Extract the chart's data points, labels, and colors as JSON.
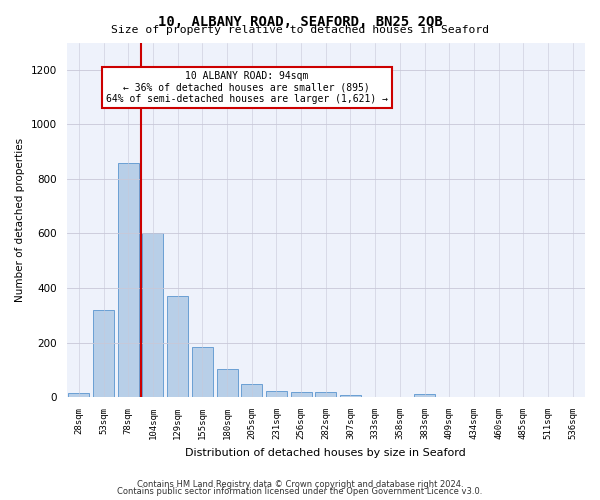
{
  "title": "10, ALBANY ROAD, SEAFORD, BN25 2QB",
  "subtitle": "Size of property relative to detached houses in Seaford",
  "xlabel": "Distribution of detached houses by size in Seaford",
  "ylabel": "Number of detached properties",
  "footer_line1": "Contains HM Land Registry data © Crown copyright and database right 2024.",
  "footer_line2": "Contains public sector information licensed under the Open Government Licence v3.0.",
  "annotation_line1": "10 ALBANY ROAD: 94sqm",
  "annotation_line2": "← 36% of detached houses are smaller (895)",
  "annotation_line3": "64% of semi-detached houses are larger (1,621) →",
  "bar_color": "#b8cfe8",
  "bar_edge_color": "#6a9fd4",
  "ref_line_color": "#cc0000",
  "categories": [
    "28sqm",
    "53sqm",
    "78sqm",
    "104sqm",
    "129sqm",
    "155sqm",
    "180sqm",
    "205sqm",
    "231sqm",
    "256sqm",
    "282sqm",
    "307sqm",
    "333sqm",
    "358sqm",
    "383sqm",
    "409sqm",
    "434sqm",
    "460sqm",
    "485sqm",
    "511sqm",
    "536sqm"
  ],
  "values": [
    15,
    320,
    860,
    600,
    370,
    185,
    105,
    48,
    22,
    18,
    18,
    8,
    0,
    0,
    12,
    0,
    0,
    0,
    0,
    0,
    0
  ],
  "ylim": [
    0,
    1300
  ],
  "yticks": [
    0,
    200,
    400,
    600,
    800,
    1000,
    1200
  ],
  "bg_color": "#eef2fb",
  "grid_color": "#c8c8d8",
  "annotation_box_color": "#cc0000",
  "ref_line_bar_index": 2.5
}
